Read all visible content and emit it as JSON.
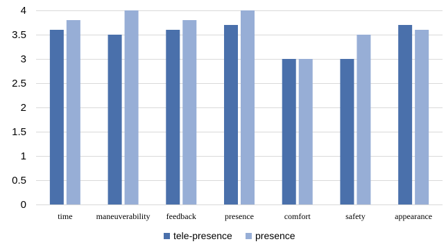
{
  "chart_data": {
    "type": "bar",
    "title": "",
    "xlabel": "",
    "ylabel": "",
    "categories": [
      "time",
      "maneuverability",
      "feedback",
      "presence",
      "comfort",
      "safety",
      "appearance"
    ],
    "series": [
      {
        "name": "tele-presence",
        "color": "#4a70ab",
        "values": [
          3.6,
          3.5,
          3.6,
          3.7,
          3.0,
          3.0,
          3.7
        ]
      },
      {
        "name": "presence",
        "color": "#97aed6",
        "values": [
          3.8,
          4.0,
          3.8,
          4.0,
          3.0,
          3.5,
          3.6
        ]
      }
    ],
    "ylim": [
      0,
      4
    ],
    "yticks": [
      "0",
      "0.5",
      "1",
      "1.5",
      "2",
      "2.5",
      "3",
      "3.5",
      "4"
    ],
    "grid": true,
    "legend_position": "bottom-center"
  }
}
